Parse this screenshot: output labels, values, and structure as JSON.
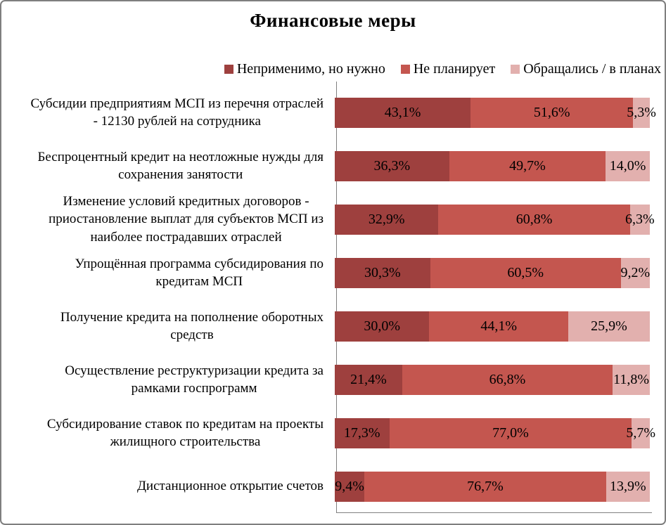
{
  "title": "Финансовые меры",
  "legend": [
    {
      "label": "Неприменимо, но нужно",
      "color": "#9e403e"
    },
    {
      "label": "Не планирует",
      "color": "#c4564f"
    },
    {
      "label": "Обращались / в планах",
      "color": "#e2b0ae"
    }
  ],
  "main": {
    "category_labels": [
      "Субсидии предприятиям МСП из перечня отраслей\n- 12130 рублей на сотрудника",
      "Беспроцентный кредит на неотложные нужды для\nсохранения занятости",
      "Изменение условий кредитных договоров -\nприостановление выплат для субъектов МСП из\nнаиболее пострадавших отраслей",
      "Упрощённая программа субсидирования по\nкредитам МСП",
      "Получение кредита на пополнение оборотных\nсредств",
      "Осуществление реструктуризации кредита за\nрамками госпрограмм",
      "Субсидирование ставок по кредитам на проекты\nжилищного строительства",
      "Дистанционное открытие счетов"
    ]
  },
  "chart_data": {
    "type": "bar",
    "orientation": "horizontal",
    "stacked": true,
    "title": "Финансовые меры",
    "legend_position": "top",
    "xlim": [
      0,
      100
    ],
    "unit": "%",
    "grid": false,
    "categories": [
      "Субсидии предприятиям МСП из перечня отраслей - 12130 рублей на сотрудника",
      "Беспроцентный кредит на неотложные нужды для сохранения занятости",
      "Изменение условий кредитных договоров - приостановление выплат для субъектов МСП из наиболее пострадавших отраслей",
      "Упрощённая программа субсидирования по кредитам МСП",
      "Получение кредита на пополнение оборотных средств",
      "Осуществление реструктуризации кредита за рамками госпрограмм",
      "Субсидирование ставок по кредитам на проекты жилищного строительства",
      "Дистанционное открытие счетов"
    ],
    "series": [
      {
        "name": "Неприменимо, но нужно",
        "color": "#9e403e",
        "values": [
          43.1,
          36.3,
          32.9,
          30.3,
          30.0,
          21.4,
          17.3,
          9.4
        ]
      },
      {
        "name": "Не планирует",
        "color": "#c4564f",
        "values": [
          51.6,
          49.7,
          60.8,
          60.5,
          44.1,
          66.8,
          77.0,
          76.7
        ]
      },
      {
        "name": "Обращались / в планах",
        "color": "#e2b0ae",
        "values": [
          5.3,
          14.0,
          6.3,
          9.2,
          25.9,
          11.8,
          5.7,
          13.9
        ]
      }
    ],
    "value_labels": [
      [
        "43,1%",
        "51,6%",
        "5,3%"
      ],
      [
        "36,3%",
        "49,7%",
        "14,0%"
      ],
      [
        "32,9%",
        "60,8%",
        "6,3%"
      ],
      [
        "30,3%",
        "60,5%",
        "9,2%"
      ],
      [
        "30,0%",
        "44,1%",
        "25,9%"
      ],
      [
        "21,4%",
        "66,8%",
        "11,8%"
      ],
      [
        "17,3%",
        "77,0%",
        "5,7%"
      ],
      [
        "9,4%",
        "76,7%",
        "13,9%"
      ]
    ],
    "colors": {
      "axis_line": "#808080",
      "frame_border": "#7f7f7f",
      "label_text": "#000000"
    }
  }
}
